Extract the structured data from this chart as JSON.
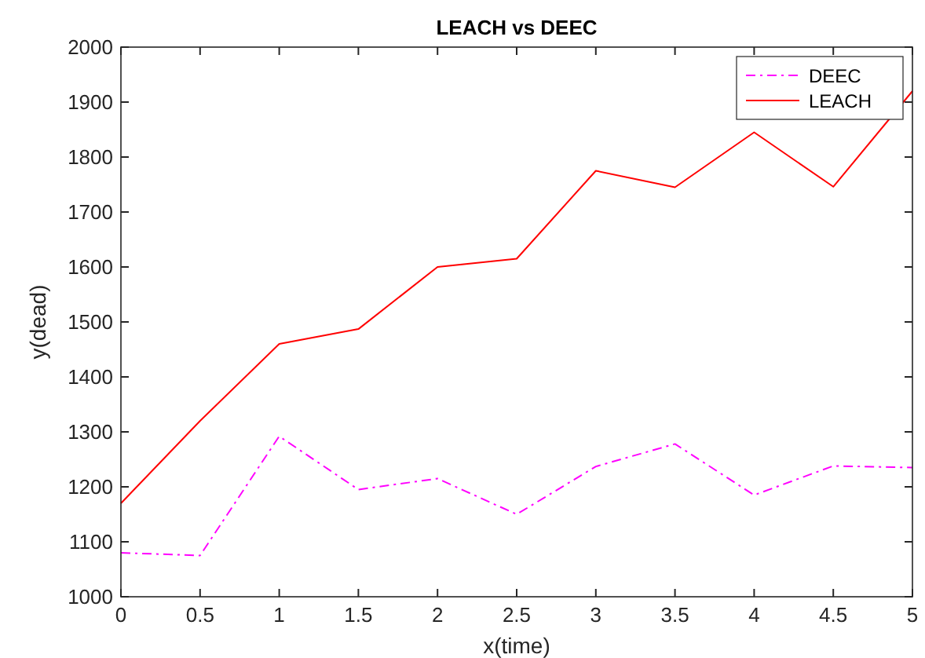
{
  "chart_data": {
    "type": "line",
    "title": "LEACH vs DEEC",
    "xlabel": "x(time)",
    "ylabel": "y(dead)",
    "x": [
      0,
      0.5,
      1,
      1.5,
      2,
      2.5,
      3,
      3.5,
      4,
      4.5,
      5
    ],
    "series": [
      {
        "name": "DEEC",
        "color": "#ff00ff",
        "line_style": "dashdot",
        "values": [
          1080,
          1075,
          1292,
          1195,
          1215,
          1150,
          1237,
          1278,
          1185,
          1238,
          1235
        ]
      },
      {
        "name": "LEACH",
        "color": "#ff0000",
        "line_style": "solid",
        "values": [
          1170,
          1320,
          1460,
          1487,
          1600,
          1615,
          1775,
          1745,
          1845,
          1746,
          1920
        ]
      }
    ],
    "xlim": [
      0,
      5
    ],
    "xticks": [
      0,
      0.5,
      1,
      1.5,
      2,
      2.5,
      3,
      3.5,
      4,
      4.5,
      5
    ],
    "ylim": [
      1000,
      2000
    ],
    "yticks": [
      1000,
      1100,
      1200,
      1300,
      1400,
      1500,
      1600,
      1700,
      1800,
      1900,
      2000
    ],
    "grid": false,
    "legend": "top right"
  }
}
